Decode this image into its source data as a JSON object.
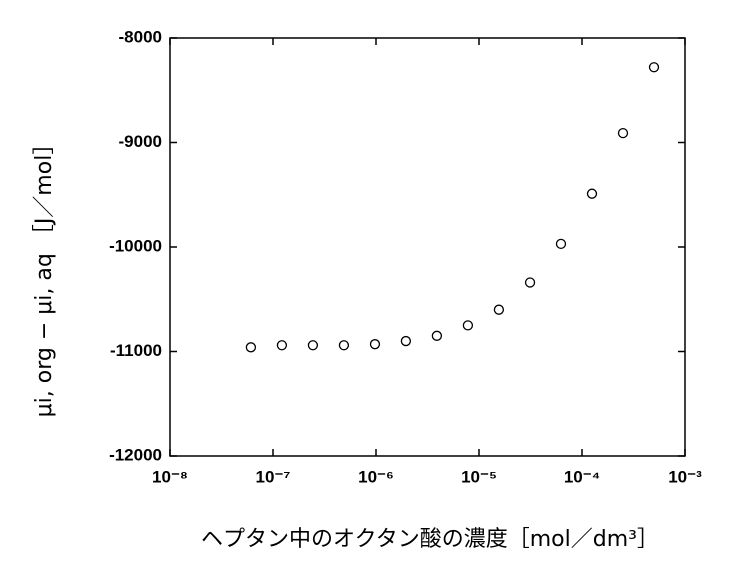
{
  "chart_data": {
    "type": "scatter",
    "x_label": "ヘプタン中のオクタン酸の濃度［mol／dm³］",
    "y_label": "μi, org − μi, aq ［J／mol］",
    "x": [
      6.1e-08,
      1.22e-07,
      2.44e-07,
      4.88e-07,
      9.77e-07,
      1.95e-06,
      3.9e-06,
      7.8e-06,
      1.56e-05,
      3.13e-05,
      6.25e-05,
      0.000125,
      0.00025,
      0.0005
    ],
    "values": [
      -10960,
      -10940,
      -10940,
      -10940,
      -10930,
      -10900,
      -10850,
      -10750,
      -10600,
      -10340,
      -9970,
      -9490,
      -8910,
      -8280
    ],
    "color": "#000000",
    "xscale": "log",
    "xlim": [
      1e-08,
      0.001
    ],
    "xticks": [
      {
        "value": 1e-08,
        "label": "10⁻⁸"
      },
      {
        "value": 1e-07,
        "label": "10⁻⁷"
      },
      {
        "value": 1e-06,
        "label": "10⁻⁶"
      },
      {
        "value": 1e-05,
        "label": "10⁻⁵"
      },
      {
        "value": 0.0001,
        "label": "10⁻⁴"
      },
      {
        "value": 0.001,
        "label": "10⁻³"
      }
    ],
    "ylim": [
      -12000,
      -8000
    ],
    "yticks": [
      -12000,
      -11000,
      -10000,
      -9000,
      -8000
    ],
    "grid": false
  }
}
